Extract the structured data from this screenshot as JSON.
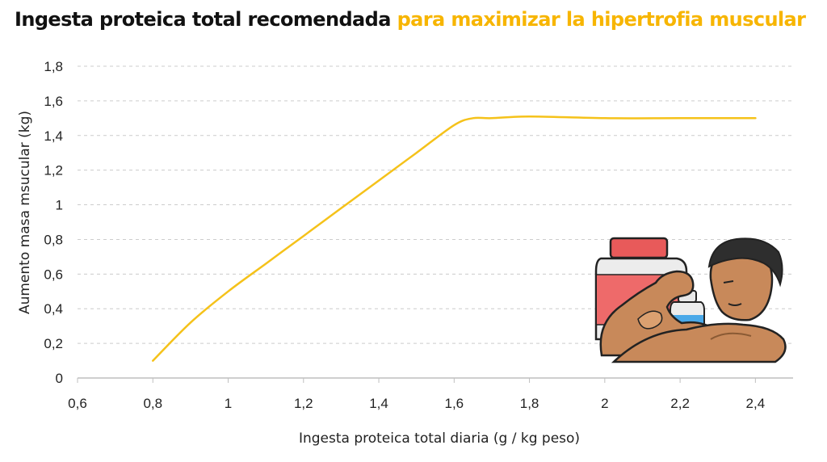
{
  "title": {
    "main": "Ingesta proteica total recomendada",
    "highlight": "para maximizar la hipertrofia muscular"
  },
  "colors": {
    "line": "#f5c21a",
    "highlight": "#f7b500",
    "grid": "#cccccc",
    "text": "#222222"
  },
  "chart_data": {
    "type": "line",
    "xlabel": "Ingesta proteica total diaria (g / kg peso)",
    "ylabel": "Aumento masa msucular (kg)",
    "xlim": [
      0.6,
      2.5
    ],
    "ylim": [
      0,
      1.8
    ],
    "x_ticks": [
      0.6,
      0.8,
      1.0,
      1.2,
      1.4,
      1.6,
      1.8,
      2.0,
      2.2,
      2.4
    ],
    "x_tick_labels": [
      "0,6",
      "0,8",
      "1",
      "1,2",
      "1,4",
      "1,6",
      "1,8",
      "2",
      "2,2",
      "2,4"
    ],
    "y_ticks": [
      0,
      0.2,
      0.4,
      0.6,
      0.8,
      1.0,
      1.2,
      1.4,
      1.6,
      1.8
    ],
    "y_tick_labels": [
      "0",
      "0,2",
      "0,4",
      "0,6",
      "0,8",
      "1",
      "1,2",
      "1,4",
      "1,6",
      "1,8"
    ],
    "grid": "horizontal dashed",
    "series": [
      {
        "x": [
          0.8,
          0.9,
          1.0,
          1.1,
          1.2,
          1.3,
          1.4,
          1.5,
          1.6,
          1.65,
          1.7,
          1.8,
          2.0,
          2.2,
          2.4
        ],
        "y": [
          0.1,
          0.32,
          0.5,
          0.66,
          0.82,
          0.98,
          1.14,
          1.3,
          1.46,
          1.5,
          1.5,
          1.51,
          1.5,
          1.5,
          1.5
        ]
      }
    ]
  },
  "illustration": {
    "description_icon": "bodybuilder-flexing-with-protein-jars-icon"
  }
}
